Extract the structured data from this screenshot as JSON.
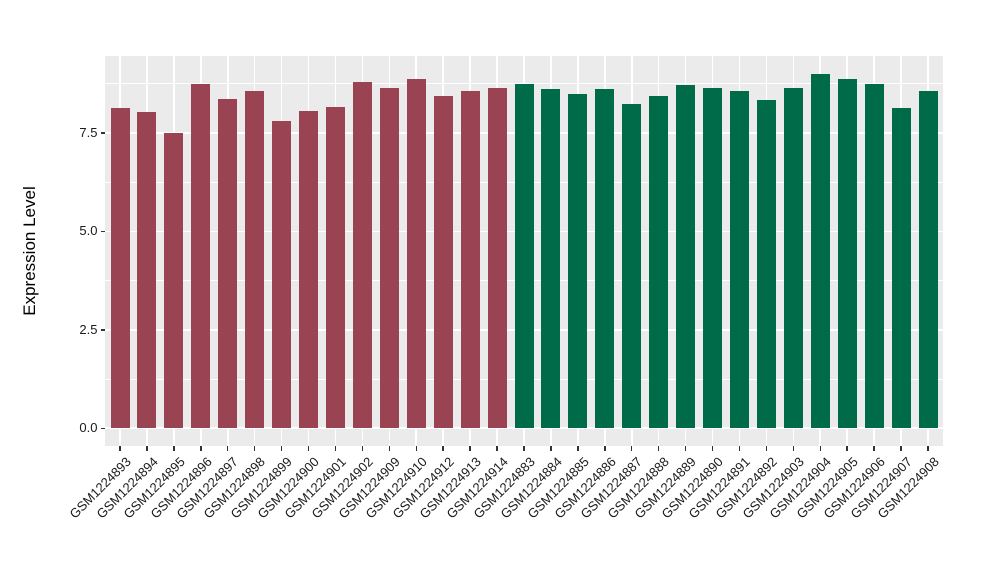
{
  "chart_data": {
    "type": "bar",
    "title": "",
    "xlabel": "",
    "ylabel": "Expression Level",
    "ylim": [
      0,
      9.45
    ],
    "grid": true,
    "legend_position": "none",
    "yticks": [
      {
        "value": 0.0,
        "label": "0.0"
      },
      {
        "value": 2.5,
        "label": "2.5"
      },
      {
        "value": 5.0,
        "label": "5.0"
      },
      {
        "value": 7.5,
        "label": "7.5"
      }
    ],
    "minor_grid_values": [
      1.25,
      3.75,
      6.25,
      8.75
    ],
    "bars": [
      {
        "label": "GSM1224893",
        "value": 8.13,
        "group": "maroon"
      },
      {
        "label": "GSM1224894",
        "value": 8.02,
        "group": "maroon"
      },
      {
        "label": "GSM1224895",
        "value": 7.49,
        "group": "maroon"
      },
      {
        "label": "GSM1224896",
        "value": 8.74,
        "group": "maroon"
      },
      {
        "label": "GSM1224897",
        "value": 8.35,
        "group": "maroon"
      },
      {
        "label": "GSM1224898",
        "value": 8.57,
        "group": "maroon"
      },
      {
        "label": "GSM1224899",
        "value": 7.79,
        "group": "maroon"
      },
      {
        "label": "GSM1224900",
        "value": 8.06,
        "group": "maroon"
      },
      {
        "label": "GSM1224901",
        "value": 8.15,
        "group": "maroon"
      },
      {
        "label": "GSM1224902",
        "value": 8.78,
        "group": "maroon"
      },
      {
        "label": "GSM1224909",
        "value": 8.65,
        "group": "maroon"
      },
      {
        "label": "GSM1224910",
        "value": 8.86,
        "group": "maroon"
      },
      {
        "label": "GSM1224912",
        "value": 8.44,
        "group": "maroon"
      },
      {
        "label": "GSM1224913",
        "value": 8.55,
        "group": "maroon"
      },
      {
        "label": "GSM1224914",
        "value": 8.64,
        "group": "maroon"
      },
      {
        "label": "GSM1224883",
        "value": 8.75,
        "group": "green"
      },
      {
        "label": "GSM1224884",
        "value": 8.61,
        "group": "green"
      },
      {
        "label": "GSM1224885",
        "value": 8.48,
        "group": "green"
      },
      {
        "label": "GSM1224886",
        "value": 8.62,
        "group": "green"
      },
      {
        "label": "GSM1224887",
        "value": 8.22,
        "group": "green"
      },
      {
        "label": "GSM1224888",
        "value": 8.43,
        "group": "green"
      },
      {
        "label": "GSM1224889",
        "value": 8.71,
        "group": "green"
      },
      {
        "label": "GSM1224890",
        "value": 8.64,
        "group": "green"
      },
      {
        "label": "GSM1224891",
        "value": 8.57,
        "group": "green"
      },
      {
        "label": "GSM1224892",
        "value": 8.34,
        "group": "green"
      },
      {
        "label": "GSM1224903",
        "value": 8.65,
        "group": "green"
      },
      {
        "label": "GSM1224904",
        "value": 9.0,
        "group": "green"
      },
      {
        "label": "GSM1224905",
        "value": 8.86,
        "group": "green"
      },
      {
        "label": "GSM1224906",
        "value": 8.75,
        "group": "green"
      },
      {
        "label": "GSM1224907",
        "value": 8.13,
        "group": "green"
      },
      {
        "label": "GSM1224908",
        "value": 8.56,
        "group": "green"
      }
    ]
  },
  "style": {
    "figure_bg": "#FFFFFF",
    "panel_bg": "#EBEBEB",
    "grid_color": "#FFFFFF",
    "tick_color": "#333333",
    "axis_text_color": "#1A1A1A",
    "axis_title_color": "#000000",
    "bar_colors": {
      "maroon": "#9A4352",
      "green": "#006B49"
    }
  }
}
